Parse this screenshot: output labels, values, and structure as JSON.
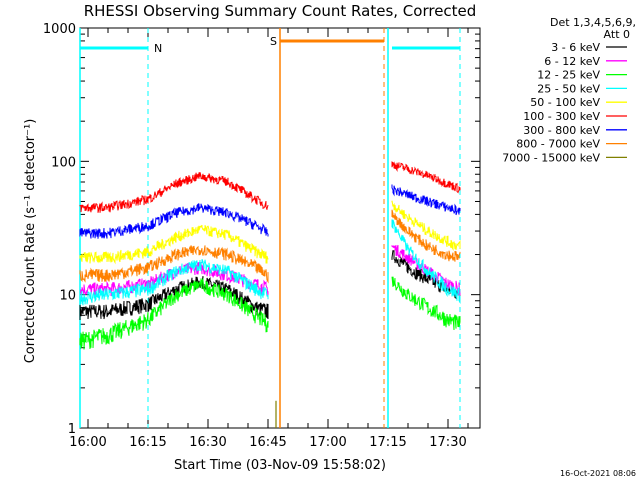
{
  "chart_data": {
    "type": "line",
    "title": "RHESSI Observing Summary Count Rates, Corrected",
    "xlabel": "Start Time (03-Nov-09 15:58:02)",
    "ylabel": "Corrected Count Rate (s⁻¹ detector⁻¹)",
    "y_scale": "log",
    "ylim": [
      1,
      1000
    ],
    "xlim": [
      "15:58",
      "17:38"
    ],
    "x_ticks": [
      "16:00",
      "16:15",
      "16:30",
      "16:45",
      "17:00",
      "17:15",
      "17:30"
    ],
    "y_ticks": [
      "1",
      "10",
      "100",
      "1000"
    ],
    "legend_header": [
      "Det 1,3,4,5,6,9,",
      "Att 0"
    ],
    "legend_position": "right",
    "series": [
      {
        "name": "3 - 6 keV",
        "color": "#000000",
        "segments": [
          {
            "x": [
              "15:58",
              "16:05",
              "16:15",
              "16:22",
              "16:28",
              "16:35",
              "16:42",
              "16:45"
            ],
            "y": [
              7.5,
              7.5,
              8.5,
              11,
              12.5,
              11,
              8,
              7.5
            ]
          },
          {
            "x": [
              "17:16",
              "17:20",
              "17:25",
              "17:30",
              "17:33"
            ],
            "y": [
              20,
              16,
              13,
              11,
              10
            ]
          }
        ]
      },
      {
        "name": "6 - 12 keV",
        "color": "#ff00ff",
        "segments": [
          {
            "x": [
              "15:58",
              "16:05",
              "16:15",
              "16:22",
              "16:28",
              "16:35",
              "16:42",
              "16:45"
            ],
            "y": [
              11,
              11,
              12,
              15,
              16,
              14,
              12,
              11
            ]
          },
          {
            "x": [
              "17:16",
              "17:20",
              "17:25",
              "17:30",
              "17:33"
            ],
            "y": [
              23,
              19,
              15,
              12,
              11
            ]
          }
        ]
      },
      {
        "name": "12 - 25 keV",
        "color": "#00ff00",
        "segments": [
          {
            "x": [
              "15:58",
              "16:05",
              "16:15",
              "16:22",
              "16:28",
              "16:35",
              "16:42",
              "16:45"
            ],
            "y": [
              4.5,
              5,
              6.5,
              10,
              12,
              10,
              7,
              6
            ]
          },
          {
            "x": [
              "17:16",
              "17:20",
              "17:25",
              "17:30",
              "17:33"
            ],
            "y": [
              13,
              10,
              8,
              6.5,
              6
            ]
          }
        ]
      },
      {
        "name": "25 - 50 keV",
        "color": "#00ffff",
        "segments": [
          {
            "x": [
              "15:58",
              "16:05",
              "16:15",
              "16:22",
              "16:28",
              "16:35",
              "16:42",
              "16:45"
            ],
            "y": [
              9.5,
              10,
              11,
              15,
              17,
              15,
              11,
              10
            ]
          },
          {
            "x": [
              "17:16",
              "17:20",
              "17:25",
              "17:30",
              "17:33"
            ],
            "y": [
              35,
              22,
              15,
              11,
              10
            ]
          }
        ]
      },
      {
        "name": "50 - 100 keV",
        "color": "#ffff00",
        "segments": [
          {
            "x": [
              "15:58",
              "16:05",
              "16:15",
              "16:22",
              "16:28",
              "16:35",
              "16:42",
              "16:45"
            ],
            "y": [
              19,
              19,
              21,
              27,
              31,
              28,
              21,
              19
            ]
          },
          {
            "x": [
              "17:16",
              "17:20",
              "17:25",
              "17:30",
              "17:33"
            ],
            "y": [
              48,
              38,
              30,
              25,
              23
            ]
          }
        ]
      },
      {
        "name": "100 - 300 keV",
        "color": "#ff0000",
        "segments": [
          {
            "x": [
              "15:58",
              "16:05",
              "16:15",
              "16:22",
              "16:28",
              "16:35",
              "16:42",
              "16:45"
            ],
            "y": [
              45,
              45,
              52,
              68,
              78,
              70,
              52,
              46
            ]
          },
          {
            "x": [
              "17:16",
              "17:20",
              "17:25",
              "17:30",
              "17:33"
            ],
            "y": [
              95,
              88,
              78,
              68,
              62
            ]
          }
        ]
      },
      {
        "name": "300 - 800 keV",
        "color": "#0000ff",
        "segments": [
          {
            "x": [
              "15:58",
              "16:05",
              "16:15",
              "16:22",
              "16:28",
              "16:35",
              "16:42",
              "16:45"
            ],
            "y": [
              29,
              29,
              33,
              41,
              45,
              41,
              33,
              29
            ]
          },
          {
            "x": [
              "17:16",
              "17:20",
              "17:25",
              "17:30",
              "17:33"
            ],
            "y": [
              62,
              56,
              50,
              45,
              42
            ]
          }
        ]
      },
      {
        "name": "800 - 7000 keV",
        "color": "#ff8000",
        "segments": [
          {
            "x": [
              "15:58",
              "16:05",
              "16:15",
              "16:22",
              "16:28",
              "16:35",
              "16:42",
              "16:45"
            ],
            "y": [
              14,
              14,
              16,
              20,
              22,
              20,
              16,
              14
            ]
          },
          {
            "x": [
              "17:16",
              "17:20",
              "17:25",
              "17:30",
              "17:33"
            ],
            "y": [
              40,
              30,
              23,
              20,
              19
            ]
          }
        ]
      },
      {
        "name": "7000 - 15000 keV",
        "color": "#808000",
        "segments": [
          {
            "x": [
              "16:47"
            ],
            "y": [
              1.6
            ]
          }
        ]
      }
    ],
    "annotations": [
      {
        "text": "N",
        "color": "#00ffff",
        "x_from": "15:58",
        "x_to": "16:15"
      },
      {
        "text": "S",
        "color": "#ff8000",
        "x_from": "16:48",
        "x_to": "17:14"
      },
      {
        "text": "",
        "color": "#00ffff",
        "x_from": "17:16",
        "x_to": "17:33"
      }
    ],
    "markers": [
      {
        "x": "15:58",
        "color": "#00ffff",
        "style": "solid"
      },
      {
        "x": "16:15",
        "color": "#00ffff",
        "style": "dashed"
      },
      {
        "x": "16:48",
        "color": "#ff8000",
        "style": "solid"
      },
      {
        "x": "17:14",
        "color": "#ff8000",
        "style": "dashed"
      },
      {
        "x": "17:15",
        "color": "#00ffff",
        "style": "solid"
      },
      {
        "x": "17:33",
        "color": "#00ffff",
        "style": "dashed"
      }
    ],
    "timestamp": "16-Oct-2021 08:06"
  }
}
